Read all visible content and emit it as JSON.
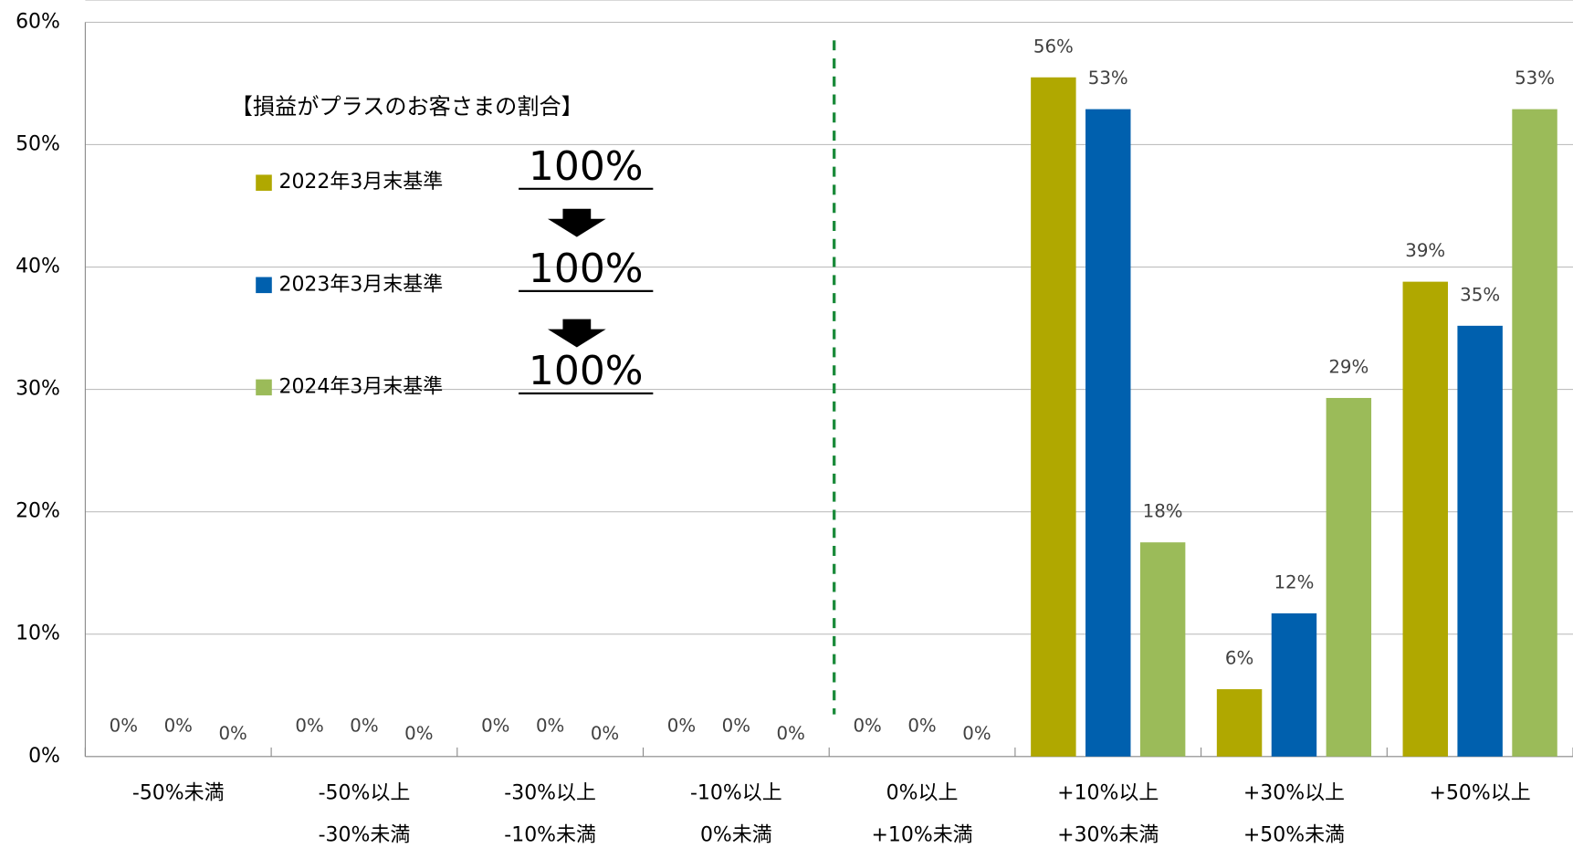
{
  "chart_data": {
    "type": "bar",
    "categories": [
      [
        "-50%未満"
      ],
      [
        "-50%以上",
        "-30%未満"
      ],
      [
        "-30%以上",
        "-10%未満"
      ],
      [
        "-10%以上",
        "0%未満"
      ],
      [
        "0%以上",
        "+10%未満"
      ],
      [
        "+10%以上",
        "+30%未満"
      ],
      [
        "+30%以上",
        "+50%未満"
      ],
      [
        "+50%以上"
      ]
    ],
    "series": [
      {
        "name": "2022年3月末基準",
        "color": "#b0a800",
        "values": [
          0,
          0,
          0,
          0,
          0,
          55.5,
          5.5,
          38.8
        ],
        "value_labels": [
          "0%",
          "0%",
          "0%",
          "0%",
          "0%",
          "56%",
          "6%",
          "39%"
        ]
      },
      {
        "name": "2023年3月末基準",
        "color": "#0060ae",
        "values": [
          0,
          0,
          0,
          0,
          0,
          52.9,
          11.7,
          35.2
        ],
        "value_labels": [
          "0%",
          "0%",
          "0%",
          "0%",
          "0%",
          "53%",
          "12%",
          "35%"
        ]
      },
      {
        "name": "2024年3月末基準",
        "color": "#9bbb59",
        "values": [
          0,
          0,
          0,
          0,
          0,
          17.5,
          29.3,
          52.9
        ],
        "value_labels": [
          "0%",
          "0%",
          "0%",
          "0%",
          "0%",
          "18%",
          "29%",
          "53%"
        ]
      }
    ],
    "ylim": [
      0,
      60
    ],
    "yticks": [
      {
        "value": 0,
        "label": "0%"
      },
      {
        "value": 10,
        "label": "10%"
      },
      {
        "value": 20,
        "label": "20%"
      },
      {
        "value": 30,
        "label": "30%"
      },
      {
        "value": 40,
        "label": "40%"
      },
      {
        "value": 50,
        "label": "50%"
      },
      {
        "value": 60,
        "label": "60%"
      }
    ],
    "grid": true,
    "annotation": {
      "title": "【損益がプラスのお客さまの割合】",
      "series_totals": [
        "100%",
        "100%",
        "100%"
      ]
    }
  }
}
